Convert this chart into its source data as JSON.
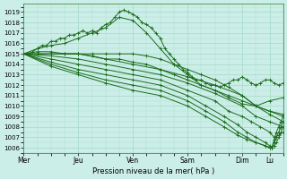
{
  "bg_color": "#cceee8",
  "grid_color": "#aaddcc",
  "line_color": "#1a6b1a",
  "ylim": [
    1005.5,
    1019.8
  ],
  "ylabel_ticks": [
    1006,
    1007,
    1008,
    1009,
    1010,
    1011,
    1012,
    1013,
    1014,
    1015,
    1016,
    1017,
    1018,
    1019
  ],
  "xlabel": "Pression niveau de la mer( hPa )",
  "xtick_labels": [
    "Mer",
    "Jeu",
    "Ven",
    "Sam",
    "Dim",
    "Lu"
  ],
  "xtick_positions": [
    0,
    24,
    48,
    72,
    96,
    108
  ],
  "total_hours": 114,
  "lines": [
    [
      0,
      1015,
      2,
      1015,
      4,
      1015.2,
      6,
      1015.5,
      8,
      1015.8,
      10,
      1015.8,
      12,
      1016.2,
      14,
      1016.2,
      16,
      1016.5,
      18,
      1016.5,
      20,
      1016.8,
      22,
      1016.8,
      24,
      1017.0,
      26,
      1017.2,
      28,
      1017.0,
      30,
      1017.2,
      32,
      1017.0,
      34,
      1017.5,
      36,
      1017.8,
      38,
      1018.0,
      40,
      1018.5,
      42,
      1019.0,
      44,
      1019.2,
      46,
      1019.0,
      48,
      1018.8,
      50,
      1018.5,
      52,
      1018.0,
      54,
      1017.8,
      56,
      1017.5,
      58,
      1017.0,
      60,
      1016.5,
      62,
      1015.5,
      64,
      1015.0,
      66,
      1014.5,
      68,
      1014.0,
      70,
      1013.5,
      72,
      1013.2,
      74,
      1012.8,
      76,
      1012.5,
      78,
      1012.5,
      80,
      1012.2,
      82,
      1012.0,
      84,
      1012.0,
      86,
      1011.8,
      88,
      1012.0,
      90,
      1012.2,
      92,
      1012.5,
      94,
      1012.5,
      96,
      1012.8,
      98,
      1012.5,
      100,
      1012.2,
      102,
      1012.0,
      104,
      1012.2,
      106,
      1012.5,
      108,
      1012.5,
      110,
      1012.2,
      112,
      1012.0,
      114,
      1012.2
    ],
    [
      0,
      1015,
      6,
      1015.5,
      12,
      1015.8,
      18,
      1016.0,
      24,
      1016.5,
      30,
      1017.0,
      36,
      1017.5,
      42,
      1018.5,
      48,
      1018.2,
      54,
      1017.0,
      60,
      1015.5,
      66,
      1014.0,
      72,
      1013.0,
      78,
      1012.0,
      84,
      1011.5,
      90,
      1010.8,
      96,
      1010.2,
      102,
      1010.0,
      108,
      1010.5,
      114,
      1010.8
    ],
    [
      0,
      1015,
      6,
      1015.2,
      12,
      1015.2,
      18,
      1015.0,
      24,
      1015.0,
      30,
      1015.0,
      36,
      1015.0,
      42,
      1015.0,
      48,
      1015.0,
      54,
      1014.8,
      60,
      1014.5,
      66,
      1014.0,
      72,
      1013.5,
      78,
      1013.0,
      84,
      1012.5,
      90,
      1011.8,
      96,
      1011.0,
      102,
      1010.0,
      108,
      1009.5,
      114,
      1009.2
    ],
    [
      0,
      1015,
      6,
      1015.0,
      12,
      1015.0,
      18,
      1015.0,
      24,
      1015.0,
      30,
      1014.8,
      36,
      1014.5,
      42,
      1014.5,
      48,
      1014.2,
      54,
      1014.0,
      60,
      1013.5,
      66,
      1013.0,
      72,
      1012.5,
      78,
      1012.0,
      84,
      1011.5,
      90,
      1011.0,
      96,
      1010.5,
      102,
      1010.0,
      108,
      1009.5,
      114,
      1009.0
    ],
    [
      0,
      1015,
      12,
      1015.0,
      24,
      1015.0,
      36,
      1014.5,
      48,
      1014.0,
      60,
      1013.5,
      72,
      1012.8,
      84,
      1012.0,
      96,
      1011.0,
      102,
      1010.0,
      108,
      1009.2,
      114,
      1008.5
    ],
    [
      0,
      1015,
      12,
      1014.8,
      24,
      1014.5,
      36,
      1014.0,
      48,
      1013.5,
      60,
      1013.0,
      72,
      1012.2,
      84,
      1011.2,
      96,
      1010.0,
      102,
      1009.0,
      108,
      1008.5,
      114,
      1008.0
    ],
    [
      0,
      1015,
      12,
      1014.5,
      24,
      1014.0,
      36,
      1013.5,
      48,
      1013.0,
      60,
      1012.5,
      72,
      1011.5,
      84,
      1010.5,
      90,
      1009.5,
      96,
      1009.0,
      100,
      1008.5,
      104,
      1008.0,
      108,
      1007.5,
      110,
      1007.0,
      112,
      1007.2,
      114,
      1007.5
    ],
    [
      0,
      1015,
      12,
      1014.2,
      24,
      1013.5,
      36,
      1013.0,
      48,
      1012.5,
      60,
      1012.0,
      72,
      1011.0,
      80,
      1010.0,
      88,
      1009.0,
      94,
      1008.2,
      98,
      1007.5,
      102,
      1007.0,
      106,
      1006.5,
      108,
      1006.2,
      109,
      1006.0,
      110,
      1006.2,
      111,
      1006.5,
      112,
      1007.0,
      113,
      1007.5,
      114,
      1008.0
    ],
    [
      0,
      1015,
      12,
      1014.0,
      24,
      1013.2,
      36,
      1012.5,
      48,
      1012.0,
      60,
      1011.5,
      72,
      1010.5,
      80,
      1009.5,
      88,
      1008.5,
      94,
      1007.5,
      98,
      1007.0,
      102,
      1006.5,
      106,
      1006.2,
      108,
      1006.0,
      109,
      1006.0,
      110,
      1006.5,
      111,
      1007.0,
      112,
      1007.5,
      113,
      1008.0,
      114,
      1008.5
    ],
    [
      0,
      1015,
      12,
      1013.8,
      24,
      1013.0,
      36,
      1012.2,
      48,
      1011.5,
      60,
      1011.0,
      72,
      1010.0,
      80,
      1009.0,
      88,
      1008.0,
      94,
      1007.2,
      98,
      1006.8,
      102,
      1006.5,
      106,
      1006.2,
      108,
      1006.0,
      109,
      1006.0,
      110,
      1006.8,
      111,
      1007.5,
      112,
      1008.0,
      113,
      1008.5,
      114,
      1009.0
    ]
  ],
  "marker": "+",
  "marker_size": 2.5,
  "linewidth": 0.7
}
